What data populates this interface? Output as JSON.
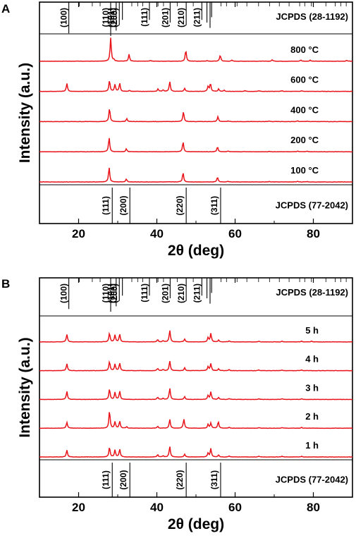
{
  "chart_data": [
    {
      "panel": "A",
      "type": "line",
      "xlabel": "2θ (deg)",
      "ylabel": "Intensity (a.u.)",
      "xlim": [
        10,
        90
      ],
      "xticks": [
        20,
        40,
        60,
        80
      ],
      "grid": false,
      "reference_top": {
        "label": "JCPDS (28-1192)",
        "lines": [
          {
            "x": 17.5,
            "hkl": "(100)",
            "len": 0.9
          },
          {
            "x": 28.2,
            "hkl": "(110)",
            "len": 1.0
          },
          {
            "x": 29.6,
            "hkl": "(101)",
            "len": 0.8
          },
          {
            "x": 30.4,
            "hkl": "(200)",
            "len": 0.6
          },
          {
            "x": 31.2,
            "hkl": "",
            "len": 0.4
          },
          {
            "x": 38.1,
            "hkl": "(111)",
            "len": 0.4
          },
          {
            "x": 43.4,
            "hkl": "(201)",
            "len": 0.5
          },
          {
            "x": 47.5,
            "hkl": "(210)",
            "len": 0.6
          },
          {
            "x": 51.5,
            "hkl": "(211)",
            "len": 0.4
          },
          {
            "x": 52.8,
            "hkl": "",
            "len": 0.5
          },
          {
            "x": 53.6,
            "hkl": "",
            "len": 0.7
          },
          {
            "x": 54.0,
            "hkl": "",
            "len": 0.3
          }
        ],
        "minor": [
          20.2,
          23.5,
          25.5,
          33.6,
          35.1,
          36.4,
          40.3,
          41.7,
          45.2,
          49.3,
          56.4,
          57.8,
          60.5,
          63.0,
          66.0,
          68.8,
          71.3,
          73.8,
          76.5,
          77.8,
          79.5,
          83.2,
          85.6,
          87.0,
          88.4
        ]
      },
      "series": [
        {
          "name": "800 °C",
          "peaks": [
            [
              28.2,
              0.95
            ],
            [
              29.0,
              0.06
            ],
            [
              32.9,
              0.28
            ],
            [
              38.4,
              0.03
            ],
            [
              47.4,
              0.45
            ],
            [
              52.8,
              0.03
            ],
            [
              56.2,
              0.25
            ],
            [
              59.2,
              0.04
            ],
            [
              69.5,
              0.06
            ],
            [
              76.8,
              0.05
            ],
            [
              79.2,
              0.04
            ],
            [
              88.5,
              0.03
            ]
          ]
        },
        {
          "name": "600 °C",
          "peaks": [
            [
              17.0,
              0.32
            ],
            [
              27.9,
              0.45
            ],
            [
              29.3,
              0.28
            ],
            [
              30.5,
              0.33
            ],
            [
              33.0,
              0.04
            ],
            [
              40.3,
              0.1
            ],
            [
              41.6,
              0.06
            ],
            [
              43.3,
              0.4
            ],
            [
              47.1,
              0.12
            ],
            [
              53.1,
              0.2
            ],
            [
              53.7,
              0.32
            ],
            [
              55.8,
              0.1
            ],
            [
              57.2,
              0.05
            ],
            [
              62.5,
              0.03
            ],
            [
              66.1,
              0.03
            ],
            [
              72.0,
              0.03
            ],
            [
              77.0,
              0.03
            ]
          ]
        },
        {
          "name": "400 °C",
          "peaks": [
            [
              27.9,
              0.55
            ],
            [
              32.3,
              0.12
            ],
            [
              46.8,
              0.4
            ],
            [
              55.6,
              0.2
            ],
            [
              58.2,
              0.03
            ],
            [
              68.7,
              0.02
            ],
            [
              76.0,
              0.03
            ],
            [
              78.5,
              0.02
            ]
          ]
        },
        {
          "name": "200 °C",
          "peaks": [
            [
              27.8,
              0.58
            ],
            [
              32.2,
              0.12
            ],
            [
              46.7,
              0.4
            ],
            [
              55.5,
              0.2
            ],
            [
              58.2,
              0.03
            ],
            [
              68.7,
              0.02
            ],
            [
              76.0,
              0.03
            ],
            [
              78.4,
              0.02
            ]
          ]
        },
        {
          "name": "100 °C",
          "peaks": [
            [
              27.8,
              0.6
            ],
            [
              32.2,
              0.12
            ],
            [
              46.7,
              0.38
            ],
            [
              55.5,
              0.2
            ],
            [
              58.2,
              0.03
            ],
            [
              68.7,
              0.02
            ],
            [
              76.0,
              0.03
            ],
            [
              78.4,
              0.02
            ]
          ]
        }
      ],
      "reference_bottom": {
        "label": "JCPDS (77-2042)",
        "lines": [
          {
            "x": 28.6,
            "hkl": "(111)"
          },
          {
            "x": 33.1,
            "hkl": "(200)"
          },
          {
            "x": 47.5,
            "hkl": "(220)"
          },
          {
            "x": 56.3,
            "hkl": "(311)"
          }
        ]
      }
    },
    {
      "panel": "B",
      "type": "line",
      "xlabel": "2θ (deg)",
      "ylabel": "Intensity (a.u.)",
      "xlim": [
        10,
        90
      ],
      "xticks": [
        20,
        40,
        60,
        80
      ],
      "grid": false,
      "reference_top": {
        "label": "JCPDS (28-1192)",
        "lines": [
          {
            "x": 17.5,
            "hkl": "(100)",
            "len": 0.9
          },
          {
            "x": 28.2,
            "hkl": "(110)",
            "len": 1.0
          },
          {
            "x": 29.6,
            "hkl": "(101)",
            "len": 0.8
          },
          {
            "x": 30.4,
            "hkl": "(200)",
            "len": 0.6
          },
          {
            "x": 31.2,
            "hkl": "",
            "len": 0.4
          },
          {
            "x": 38.1,
            "hkl": "(111)",
            "len": 0.4
          },
          {
            "x": 43.4,
            "hkl": "(201)",
            "len": 0.5
          },
          {
            "x": 47.5,
            "hkl": "(210)",
            "len": 0.6
          },
          {
            "x": 51.5,
            "hkl": "(211)",
            "len": 0.4
          },
          {
            "x": 52.8,
            "hkl": "",
            "len": 0.5
          },
          {
            "x": 53.6,
            "hkl": "",
            "len": 0.7
          },
          {
            "x": 54.0,
            "hkl": "",
            "len": 0.3
          }
        ],
        "minor": [
          20.2,
          23.5,
          25.5,
          33.6,
          35.1,
          36.4,
          40.3,
          41.7,
          45.2,
          49.3,
          56.4,
          57.8,
          60.5,
          63.0,
          66.0,
          68.8,
          71.3,
          73.8,
          76.5,
          77.8,
          79.5,
          83.2,
          85.6,
          87.0,
          88.4
        ]
      },
      "series": [
        {
          "name": "5 h",
          "peaks": [
            [
              17.0,
              0.32
            ],
            [
              27.9,
              0.38
            ],
            [
              29.3,
              0.3
            ],
            [
              30.5,
              0.33
            ],
            [
              40.2,
              0.1
            ],
            [
              41.6,
              0.05
            ],
            [
              43.3,
              0.5
            ],
            [
              47.1,
              0.12
            ],
            [
              53.1,
              0.18
            ],
            [
              53.8,
              0.36
            ],
            [
              55.8,
              0.08
            ],
            [
              58.5,
              0.04
            ],
            [
              66.1,
              0.03
            ],
            [
              72.0,
              0.03
            ],
            [
              77.0,
              0.03
            ],
            [
              79.5,
              0.03
            ]
          ]
        },
        {
          "name": "4 h",
          "peaks": [
            [
              17.0,
              0.3
            ],
            [
              27.9,
              0.4
            ],
            [
              29.3,
              0.28
            ],
            [
              30.5,
              0.32
            ],
            [
              40.2,
              0.1
            ],
            [
              41.6,
              0.05
            ],
            [
              43.3,
              0.42
            ],
            [
              47.1,
              0.12
            ],
            [
              53.1,
              0.17
            ],
            [
              53.8,
              0.3
            ],
            [
              55.8,
              0.08
            ],
            [
              58.5,
              0.04
            ],
            [
              66.1,
              0.03
            ],
            [
              72.0,
              0.03
            ],
            [
              77.0,
              0.03
            ]
          ]
        },
        {
          "name": "3 h",
          "peaks": [
            [
              17.0,
              0.34
            ],
            [
              27.9,
              0.45
            ],
            [
              29.3,
              0.3
            ],
            [
              30.5,
              0.35
            ],
            [
              40.2,
              0.1
            ],
            [
              41.6,
              0.05
            ],
            [
              43.3,
              0.48
            ],
            [
              47.1,
              0.12
            ],
            [
              53.1,
              0.17
            ],
            [
              53.8,
              0.32
            ],
            [
              55.8,
              0.08
            ],
            [
              58.5,
              0.04
            ],
            [
              66.1,
              0.03
            ],
            [
              72.0,
              0.03
            ],
            [
              77.0,
              0.03
            ]
          ]
        },
        {
          "name": "2 h",
          "peaks": [
            [
              17.0,
              0.25
            ],
            [
              27.9,
              0.75
            ],
            [
              29.3,
              0.28
            ],
            [
              30.5,
              0.3
            ],
            [
              32.3,
              0.06
            ],
            [
              40.2,
              0.08
            ],
            [
              43.3,
              0.38
            ],
            [
              46.9,
              0.4
            ],
            [
              53.1,
              0.17
            ],
            [
              53.8,
              0.22
            ],
            [
              55.7,
              0.28
            ],
            [
              58.5,
              0.04
            ],
            [
              66.1,
              0.03
            ],
            [
              72.0,
              0.03
            ],
            [
              77.0,
              0.03
            ]
          ]
        },
        {
          "name": "1 h",
          "peaks": [
            [
              17.0,
              0.3
            ],
            [
              27.9,
              0.42
            ],
            [
              29.3,
              0.3
            ],
            [
              30.5,
              0.33
            ],
            [
              40.2,
              0.1
            ],
            [
              41.6,
              0.05
            ],
            [
              43.3,
              0.45
            ],
            [
              47.1,
              0.12
            ],
            [
              53.1,
              0.17
            ],
            [
              53.8,
              0.36
            ],
            [
              55.8,
              0.08
            ],
            [
              58.5,
              0.04
            ],
            [
              66.1,
              0.03
            ],
            [
              72.0,
              0.03
            ],
            [
              77.0,
              0.03
            ]
          ]
        }
      ],
      "reference_bottom": {
        "label": "JCPDS (77-2042)",
        "lines": [
          {
            "x": 28.6,
            "hkl": "(111)"
          },
          {
            "x": 33.1,
            "hkl": "(200)"
          },
          {
            "x": 47.5,
            "hkl": "(220)"
          },
          {
            "x": 56.3,
            "hkl": "(311)"
          }
        ]
      }
    }
  ],
  "colors": {
    "series": "#e8141a",
    "reference": "#000000"
  }
}
